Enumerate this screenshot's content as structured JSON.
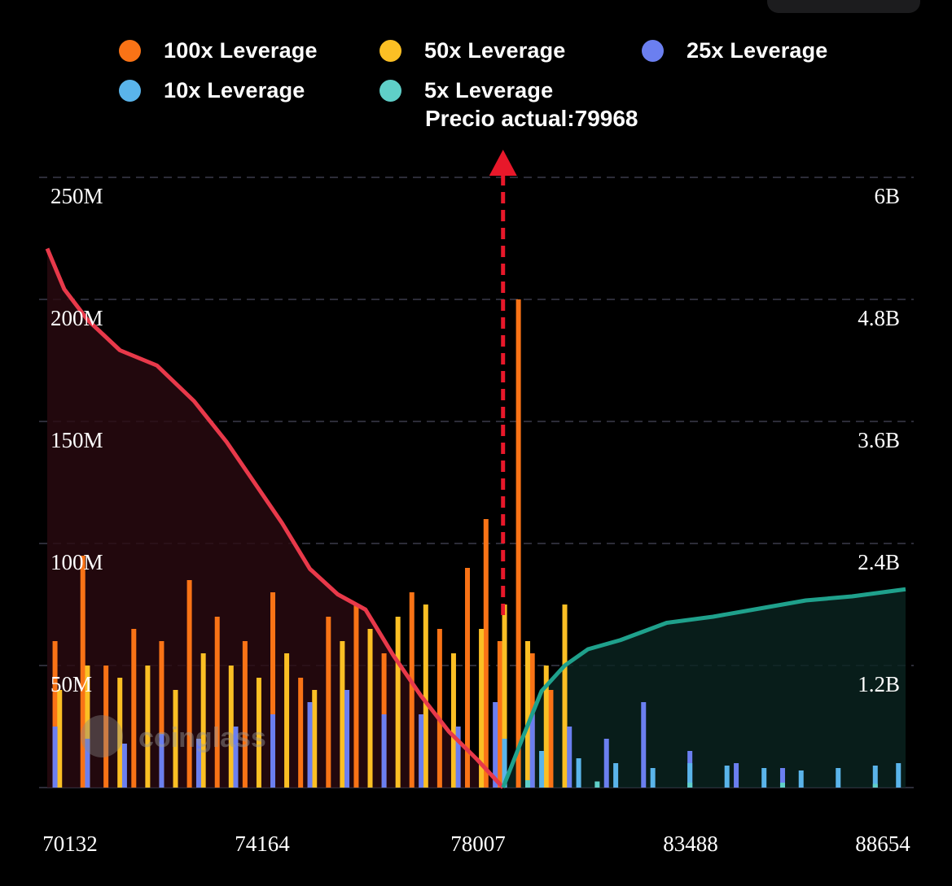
{
  "legend": [
    {
      "label": "100x Leverage",
      "color": "#f97316"
    },
    {
      "label": "50x Leverage",
      "color": "#fbbf24"
    },
    {
      "label": "25x Leverage",
      "color": "#6b7ff0"
    },
    {
      "label": "10x Leverage",
      "color": "#5ab4ea"
    },
    {
      "label": "5x Leverage",
      "color": "#5fcfc8"
    }
  ],
  "current_price_label": "Precio actual:79968",
  "watermark": "coinglass",
  "chart_data": {
    "type": "bar",
    "title": "",
    "current_price": 79968,
    "xlim": [
      70132,
      88654
    ],
    "x_ticks": [
      70132,
      74164,
      78007,
      83488,
      88654
    ],
    "y_left": {
      "ticks": [
        "250M",
        "200M",
        "150M",
        "100M",
        "50M"
      ],
      "ylim": [
        0,
        250000000
      ]
    },
    "y_right": {
      "ticks": [
        "6B",
        "4.8B",
        "3.6B",
        "2.4B",
        "1.2B"
      ],
      "ylim": [
        0,
        6000000000
      ]
    },
    "grid": true,
    "series": [
      {
        "name": "100x Leverage",
        "color": "#f97316",
        "x": [
          70300,
          70900,
          71400,
          72000,
          72600,
          73200,
          73800,
          74400,
          75000,
          75600,
          76200,
          76800,
          77400,
          78000,
          78600,
          79200,
          79600,
          79900,
          80300,
          80600,
          81000,
          81300
        ],
        "values": [
          60000000,
          95000000,
          50000000,
          65000000,
          60000000,
          85000000,
          70000000,
          60000000,
          80000000,
          45000000,
          70000000,
          75000000,
          55000000,
          80000000,
          65000000,
          90000000,
          110000000,
          60000000,
          200000000,
          55000000,
          40000000,
          45000000
        ]
      },
      {
        "name": "50x Leverage",
        "color": "#fbbf24",
        "x": [
          70400,
          71000,
          71700,
          72300,
          72900,
          73500,
          74100,
          74700,
          75300,
          75900,
          76500,
          77100,
          77700,
          78300,
          78900,
          79500,
          80000,
          80500,
          80900,
          81300
        ],
        "values": [
          40000000,
          50000000,
          45000000,
          50000000,
          40000000,
          55000000,
          50000000,
          45000000,
          55000000,
          40000000,
          60000000,
          65000000,
          70000000,
          75000000,
          55000000,
          65000000,
          75000000,
          60000000,
          50000000,
          75000000
        ]
      },
      {
        "name": "25x Leverage",
        "color": "#6b7ff0",
        "x": [
          70300,
          71000,
          71800,
          72600,
          73400,
          74200,
          75000,
          75800,
          76600,
          77400,
          78200,
          79000,
          79800,
          80600,
          81400,
          82200,
          83000,
          84000,
          85000,
          86000
        ],
        "values": [
          25000000,
          20000000,
          18000000,
          22000000,
          20000000,
          25000000,
          30000000,
          35000000,
          40000000,
          30000000,
          30000000,
          25000000,
          35000000,
          30000000,
          25000000,
          20000000,
          35000000,
          15000000,
          10000000,
          8000000
        ]
      },
      {
        "name": "10x Leverage",
        "color": "#5ab4ea",
        "x": [
          80000,
          80800,
          81600,
          82400,
          83200,
          84000,
          84800,
          85600,
          86400,
          87200,
          88000,
          88500
        ],
        "values": [
          20000000,
          15000000,
          12000000,
          10000000,
          8000000,
          10000000,
          9000000,
          8000000,
          7000000,
          8000000,
          9000000,
          10000000
        ]
      },
      {
        "name": "5x Leverage",
        "color": "#5fcfc8",
        "x": [
          80500,
          82000,
          84000,
          86000,
          88000
        ],
        "values": [
          3000000,
          2500000,
          2000000,
          2000000,
          1500000
        ]
      }
    ],
    "cumulative_short": {
      "color": "#e8394a",
      "x": [
        70132,
        70500,
        71000,
        71700,
        72500,
        73300,
        74000,
        74600,
        75200,
        75800,
        76400,
        77000,
        77600,
        78200,
        78800,
        79400,
        79968
      ],
      "values": [
        5300000000,
        4900000000,
        4600000000,
        4300000000,
        4150000000,
        3800000000,
        3400000000,
        3000000000,
        2600000000,
        2150000000,
        1900000000,
        1750000000,
        1300000000,
        900000000,
        550000000,
        280000000,
        0
      ]
    },
    "cumulative_long": {
      "color": "#1fa18c",
      "x": [
        79968,
        80400,
        80800,
        81300,
        81800,
        82500,
        83500,
        84500,
        85500,
        86500,
        87500,
        88654
      ],
      "values": [
        0,
        500000000,
        950000000,
        1200000000,
        1360000000,
        1450000000,
        1620000000,
        1680000000,
        1760000000,
        1840000000,
        1880000000,
        1950000000
      ]
    }
  }
}
